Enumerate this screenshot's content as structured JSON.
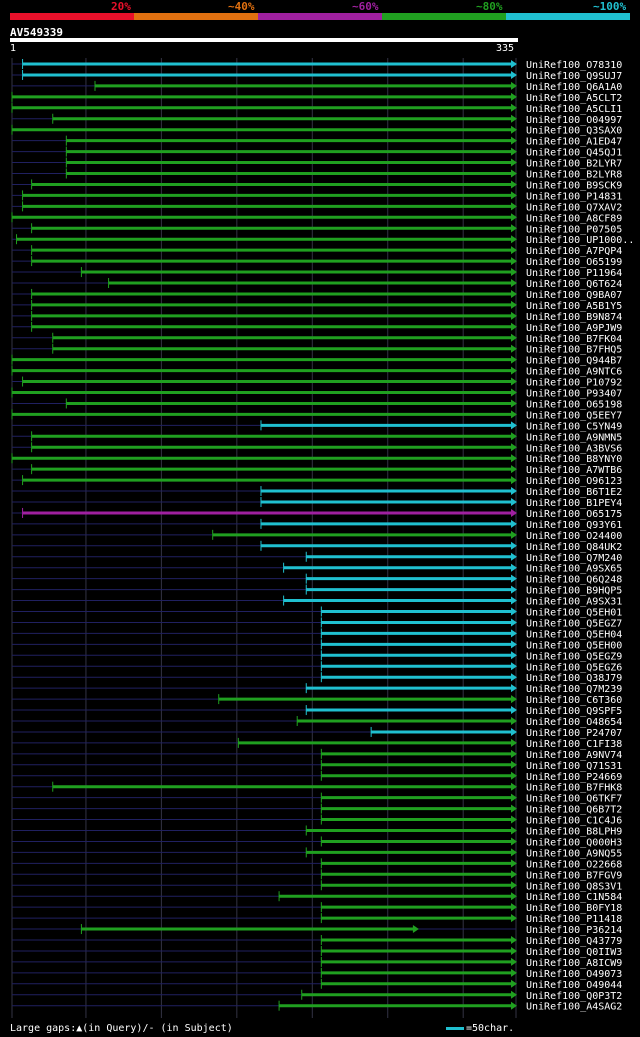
{
  "legend": [
    {
      "label": "20%",
      "color": "#e8102a"
    },
    {
      "label": "~40%",
      "color": "#e07010"
    },
    {
      "label": "~60%",
      "color": "#a020a0"
    },
    {
      "label": "~80%",
      "color": "#20a020"
    },
    {
      "label": "~100%",
      "color": "#20c0d0"
    }
  ],
  "query": {
    "id": "AV549339",
    "start": "1",
    "end": "335",
    "length": 335
  },
  "footer": {
    "gaps": "Large gaps:▲(in Query)/- (in Subject)",
    "scale": "=50char."
  },
  "chart_data": {
    "type": "alignment",
    "hits": [
      {
        "name": "UniRef100_O78310",
        "start": 8,
        "end": 335,
        "color": "cyan"
      },
      {
        "name": "UniRef100_Q9SUJ7",
        "start": 8,
        "end": 335,
        "color": "cyan"
      },
      {
        "name": "UniRef100_Q6A1A0",
        "start": 56,
        "end": 335,
        "color": "green"
      },
      {
        "name": "UniRef100_A5CLT2",
        "start": 1,
        "end": 335,
        "color": "green"
      },
      {
        "name": "UniRef100_A5CLI1",
        "start": 1,
        "end": 335,
        "color": "green"
      },
      {
        "name": "UniRef100_O04997",
        "start": 28,
        "end": 335,
        "color": "green"
      },
      {
        "name": "UniRef100_Q3SAX0",
        "start": 1,
        "end": 335,
        "color": "green"
      },
      {
        "name": "UniRef100_A1ED47",
        "start": 37,
        "end": 335,
        "color": "green"
      },
      {
        "name": "UniRef100_Q45QJ1",
        "start": 37,
        "end": 335,
        "color": "green"
      },
      {
        "name": "UniRef100_B2LYR7",
        "start": 37,
        "end": 335,
        "color": "green"
      },
      {
        "name": "UniRef100_B2LYR8",
        "start": 37,
        "end": 335,
        "color": "green"
      },
      {
        "name": "UniRef100_B9SCK9",
        "start": 14,
        "end": 335,
        "color": "green"
      },
      {
        "name": "UniRef100_P14831",
        "start": 8,
        "end": 335,
        "color": "green"
      },
      {
        "name": "UniRef100_Q7XAV2",
        "start": 8,
        "end": 335,
        "color": "green"
      },
      {
        "name": "UniRef100_A8CF89",
        "start": 1,
        "end": 335,
        "color": "green"
      },
      {
        "name": "UniRef100_P07505",
        "start": 14,
        "end": 335,
        "color": "green"
      },
      {
        "name": "UniRef100_UP1000..",
        "start": 4,
        "end": 335,
        "color": "green"
      },
      {
        "name": "UniRef100_A7PQP4",
        "start": 14,
        "end": 335,
        "color": "green"
      },
      {
        "name": "UniRef100_O65199",
        "start": 14,
        "end": 335,
        "color": "green"
      },
      {
        "name": "UniRef100_P11964",
        "start": 47,
        "end": 335,
        "color": "green"
      },
      {
        "name": "UniRef100_Q6T624",
        "start": 65,
        "end": 335,
        "color": "green"
      },
      {
        "name": "UniRef100_Q9BA07",
        "start": 14,
        "end": 335,
        "color": "green"
      },
      {
        "name": "UniRef100_A5B1Y5",
        "start": 14,
        "end": 335,
        "color": "green"
      },
      {
        "name": "UniRef100_B9N874",
        "start": 14,
        "end": 335,
        "color": "green"
      },
      {
        "name": "UniRef100_A9PJW9",
        "start": 14,
        "end": 335,
        "color": "green"
      },
      {
        "name": "UniRef100_B7FK04",
        "start": 28,
        "end": 335,
        "color": "green"
      },
      {
        "name": "UniRef100_B7FHQ5",
        "start": 28,
        "end": 335,
        "color": "green"
      },
      {
        "name": "UniRef100_Q944B7",
        "start": 1,
        "end": 335,
        "color": "green"
      },
      {
        "name": "UniRef100_A9NTC6",
        "start": 1,
        "end": 335,
        "color": "green"
      },
      {
        "name": "UniRef100_P10792",
        "start": 8,
        "end": 335,
        "color": "green"
      },
      {
        "name": "UniRef100_P93407",
        "start": 1,
        "end": 335,
        "color": "green"
      },
      {
        "name": "UniRef100_O65198",
        "start": 37,
        "end": 335,
        "color": "green"
      },
      {
        "name": "UniRef100_Q5EEY7",
        "start": 1,
        "end": 335,
        "color": "green"
      },
      {
        "name": "UniRef100_C5YN49",
        "start": 166,
        "end": 335,
        "color": "cyan"
      },
      {
        "name": "UniRef100_A9NMN5",
        "start": 14,
        "end": 335,
        "color": "green"
      },
      {
        "name": "UniRef100_A3BVS6",
        "start": 14,
        "end": 335,
        "color": "green"
      },
      {
        "name": "UniRef100_B8YNY0",
        "start": 1,
        "end": 335,
        "color": "green"
      },
      {
        "name": "UniRef100_A7WTB6",
        "start": 14,
        "end": 335,
        "color": "green"
      },
      {
        "name": "UniRef100_O96123",
        "start": 8,
        "end": 335,
        "color": "green"
      },
      {
        "name": "UniRef100_B6T1E2",
        "start": 166,
        "end": 335,
        "color": "cyan"
      },
      {
        "name": "UniRef100_B1PEY4",
        "start": 166,
        "end": 335,
        "color": "cyan"
      },
      {
        "name": "UniRef100_O65175",
        "start": 8,
        "end": 335,
        "color": "purple"
      },
      {
        "name": "UniRef100_Q93Y61",
        "start": 166,
        "end": 335,
        "color": "cyan"
      },
      {
        "name": "UniRef100_O24400",
        "start": 134,
        "end": 335,
        "color": "green"
      },
      {
        "name": "UniRef100_Q84UK2",
        "start": 166,
        "end": 335,
        "color": "cyan"
      },
      {
        "name": "UniRef100_Q7M240",
        "start": 196,
        "end": 335,
        "color": "cyan"
      },
      {
        "name": "UniRef100_A9SX65",
        "start": 181,
        "end": 335,
        "color": "cyan"
      },
      {
        "name": "UniRef100_Q6Q248",
        "start": 196,
        "end": 335,
        "color": "cyan"
      },
      {
        "name": "UniRef100_B9HQP5",
        "start": 196,
        "end": 335,
        "color": "cyan"
      },
      {
        "name": "UniRef100_A9SX31",
        "start": 181,
        "end": 335,
        "color": "cyan"
      },
      {
        "name": "UniRef100_Q5EH01",
        "start": 206,
        "end": 335,
        "color": "cyan"
      },
      {
        "name": "UniRef100_Q5EGZ7",
        "start": 206,
        "end": 335,
        "color": "cyan"
      },
      {
        "name": "UniRef100_Q5EH04",
        "start": 206,
        "end": 335,
        "color": "cyan"
      },
      {
        "name": "UniRef100_Q5EH00",
        "start": 206,
        "end": 335,
        "color": "cyan"
      },
      {
        "name": "UniRef100_Q5EGZ9",
        "start": 206,
        "end": 335,
        "color": "cyan"
      },
      {
        "name": "UniRef100_Q5EGZ6",
        "start": 206,
        "end": 335,
        "color": "cyan"
      },
      {
        "name": "UniRef100_Q38J79",
        "start": 206,
        "end": 335,
        "color": "cyan"
      },
      {
        "name": "UniRef100_Q7M239",
        "start": 196,
        "end": 335,
        "color": "cyan"
      },
      {
        "name": "UniRef100_C6T360",
        "start": 138,
        "end": 335,
        "color": "green"
      },
      {
        "name": "UniRef100_Q9SPF5",
        "start": 196,
        "end": 335,
        "color": "cyan"
      },
      {
        "name": "UniRef100_O48654",
        "start": 190,
        "end": 335,
        "color": "green"
      },
      {
        "name": "UniRef100_P24707",
        "start": 239,
        "end": 335,
        "color": "cyan"
      },
      {
        "name": "UniRef100_C1FI38",
        "start": 151,
        "end": 335,
        "color": "green"
      },
      {
        "name": "UniRef100_A9NV74",
        "start": 206,
        "end": 335,
        "color": "green"
      },
      {
        "name": "UniRef100_Q71S31",
        "start": 206,
        "end": 335,
        "color": "green"
      },
      {
        "name": "UniRef100_P24669",
        "start": 206,
        "end": 335,
        "color": "green"
      },
      {
        "name": "UniRef100_B7FHK8",
        "start": 28,
        "end": 335,
        "color": "green"
      },
      {
        "name": "UniRef100_Q6TKF7",
        "start": 206,
        "end": 335,
        "color": "green"
      },
      {
        "name": "UniRef100_Q6B7T2",
        "start": 206,
        "end": 335,
        "color": "green"
      },
      {
        "name": "UniRef100_C1C4J6",
        "start": 206,
        "end": 335,
        "color": "green"
      },
      {
        "name": "UniRef100_B8LPH9",
        "start": 196,
        "end": 335,
        "color": "green"
      },
      {
        "name": "UniRef100_Q000H3",
        "start": 206,
        "end": 335,
        "color": "green"
      },
      {
        "name": "UniRef100_A9NQ55",
        "start": 196,
        "end": 335,
        "color": "green"
      },
      {
        "name": "UniRef100_O22668",
        "start": 206,
        "end": 335,
        "color": "green"
      },
      {
        "name": "UniRef100_B7FGV9",
        "start": 206,
        "end": 335,
        "color": "green"
      },
      {
        "name": "UniRef100_Q8S3V1",
        "start": 206,
        "end": 335,
        "color": "green"
      },
      {
        "name": "UniRef100_C1N584",
        "start": 178,
        "end": 335,
        "color": "green"
      },
      {
        "name": "UniRef100_B0FY18",
        "start": 206,
        "end": 335,
        "color": "green"
      },
      {
        "name": "UniRef100_P11418",
        "start": 206,
        "end": 335,
        "color": "green"
      },
      {
        "name": "UniRef100_P36214",
        "start": 47,
        "end": 270,
        "color": "green"
      },
      {
        "name": "UniRef100_Q43779",
        "start": 206,
        "end": 335,
        "color": "green"
      },
      {
        "name": "UniRef100_Q0IIW3",
        "start": 206,
        "end": 335,
        "color": "green"
      },
      {
        "name": "UniRef100_A8ICW9",
        "start": 206,
        "end": 335,
        "color": "green"
      },
      {
        "name": "UniRef100_O49073",
        "start": 206,
        "end": 335,
        "color": "green"
      },
      {
        "name": "UniRef100_O49044",
        "start": 206,
        "end": 335,
        "color": "green"
      },
      {
        "name": "UniRef100_Q0P3T2",
        "start": 193,
        "end": 335,
        "color": "green"
      },
      {
        "name": "UniRef100_A4SAG2",
        "start": 178,
        "end": 335,
        "color": "green"
      }
    ]
  }
}
